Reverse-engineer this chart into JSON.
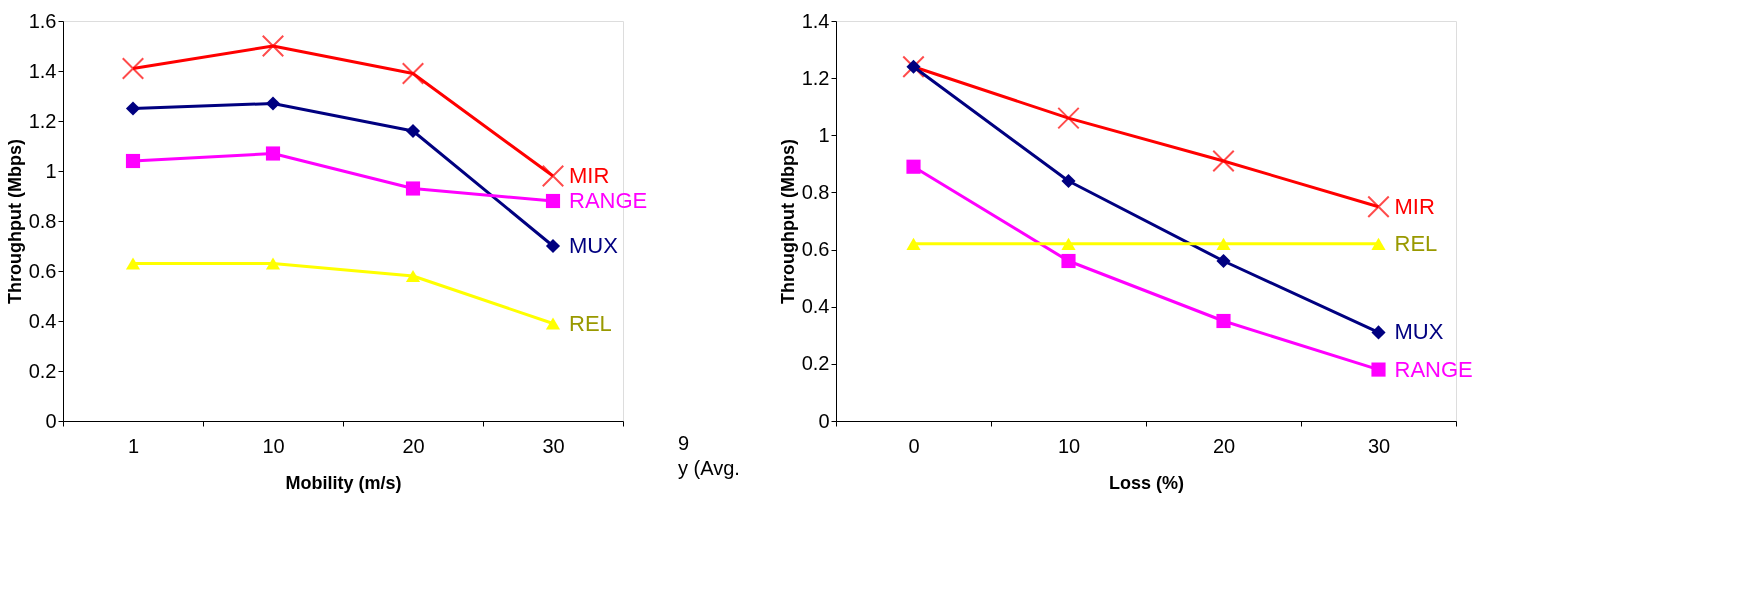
{
  "chart_data": [
    {
      "type": "line",
      "xlabel": "Mobility (m/s)",
      "ylabel": "Throughput (Mbps)",
      "categories": [
        "1",
        "10",
        "20",
        "30"
      ],
      "ylim": [
        0,
        1.6
      ],
      "yticks": [
        0,
        0.2,
        0.4,
        0.6,
        0.8,
        1,
        1.2,
        1.4,
        1.6
      ],
      "series": [
        {
          "name": "MIR",
          "color": "#ff0000",
          "marker": "cross",
          "values": [
            1.41,
            1.5,
            1.39,
            0.98
          ]
        },
        {
          "name": "MUX",
          "color": "#000080",
          "marker": "diamond",
          "values": [
            1.25,
            1.27,
            1.16,
            0.7
          ]
        },
        {
          "name": "RANGE",
          "color": "#ff00ff",
          "marker": "square",
          "values": [
            1.04,
            1.07,
            0.93,
            0.88
          ]
        },
        {
          "name": "REL",
          "color": "#ffff00",
          "marker": "triangle",
          "values": [
            0.63,
            0.63,
            0.58,
            0.39
          ]
        }
      ]
    },
    {
      "type": "other",
      "annotations": [
        "9",
        "y (Avg."
      ]
    },
    {
      "type": "line",
      "xlabel": "Loss (%)",
      "ylabel": "Throughput (Mbps)",
      "categories": [
        "0",
        "10",
        "20",
        "30"
      ],
      "ylim": [
        0,
        1.4
      ],
      "yticks": [
        0,
        0.2,
        0.4,
        0.6,
        0.8,
        1,
        1.2,
        1.4
      ],
      "series": [
        {
          "name": "MIR",
          "color": "#ff0000",
          "marker": "cross",
          "values": [
            1.24,
            1.06,
            0.91,
            0.75
          ]
        },
        {
          "name": "MUX",
          "color": "#000080",
          "marker": "diamond",
          "values": [
            1.24,
            0.84,
            0.56,
            0.31
          ]
        },
        {
          "name": "RANGE",
          "color": "#ff00ff",
          "marker": "square",
          "values": [
            0.89,
            0.56,
            0.35,
            0.18
          ]
        },
        {
          "name": "REL",
          "color": "#ffff00",
          "marker": "triangle",
          "values": [
            0.62,
            0.62,
            0.62,
            0.62
          ]
        }
      ]
    }
  ]
}
